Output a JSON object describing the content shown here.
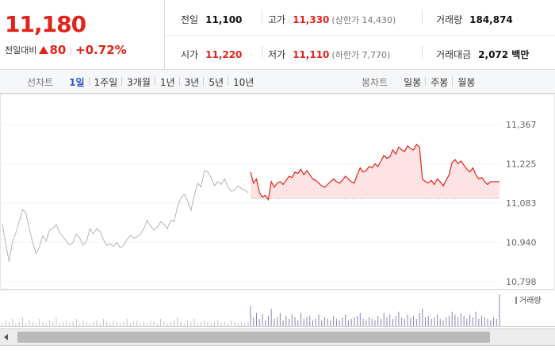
{
  "quote": {
    "price": "11,180",
    "change_label": "전일대비",
    "change_amount": "80",
    "change_rate": "+0.72%",
    "prev_close_label": "전일",
    "prev_close": "11,100",
    "open_label": "시가",
    "open": "11,220",
    "high_label": "고가",
    "high": "11,330",
    "upper_limit": "(상한가 14,430)",
    "low_label": "저가",
    "low": "11,110",
    "lower_limit": "(하한가 7,770)",
    "volume_label": "거래량",
    "volume": "184,874",
    "turnover_label": "거래대금",
    "turnover": "2,072 백만"
  },
  "line_tabs": {
    "caption": "선차트",
    "items": [
      "1일",
      "1주일",
      "3개월",
      "1년",
      "3년",
      "5년",
      "10년"
    ],
    "active": "1일"
  },
  "candle_tabs": {
    "caption": "봉차트",
    "items": [
      "일봉",
      "주봉",
      "월봉"
    ]
  },
  "chart_data": {
    "type": "line",
    "y_ticks": [
      "11,367",
      "11,225",
      "11,083",
      "10,940",
      "10,798"
    ],
    "ylim": [
      10798,
      11367
    ],
    "reference_line": 11100,
    "volume_legend": "거래량",
    "colors": {
      "previous_day": "#b5b5b5",
      "today": "#e2231a",
      "today_fill": "#fde3e3",
      "volume": "#8f7fb8",
      "volume_prev": "#c2c2c2"
    },
    "series": [
      {
        "session": "previous_day",
        "values": [
          11005,
          10935,
          10870,
          10940,
          10975,
          11015,
          11060,
          11045,
          10990,
          10940,
          10900,
          10925,
          10965,
          10945,
          10985,
          10990,
          11005,
          10975,
          10960,
          10945,
          10930,
          10940,
          10970,
          10955,
          10930,
          10945,
          10990,
          10970,
          10990,
          10980,
          10950,
          10930,
          10935,
          10925,
          10940,
          10920,
          10930,
          10950,
          10965,
          10955,
          10960,
          10970,
          10990,
          11020,
          11000,
          10985,
          10995,
          11015,
          11005,
          10990,
          11020,
          11015,
          11070,
          11100,
          11115,
          11090,
          11055,
          11110,
          11155,
          11140,
          11200,
          11195,
          11175,
          11145,
          11160,
          11150,
          11170,
          11140,
          11125,
          11130,
          11145,
          11135,
          11130,
          11120
        ]
      },
      {
        "session": "today",
        "values": [
          11195,
          11155,
          11170,
          11120,
          11105,
          11110,
          11095,
          11160,
          11140,
          11155,
          11160,
          11150,
          11165,
          11180,
          11175,
          11195,
          11190,
          11205,
          11185,
          11200,
          11185,
          11170,
          11165,
          11155,
          11145,
          11140,
          11150,
          11160,
          11170,
          11160,
          11155,
          11165,
          11180,
          11170,
          11160,
          11155,
          11185,
          11210,
          11195,
          11200,
          11215,
          11210,
          11225,
          11215,
          11235,
          11255,
          11245,
          11250,
          11275,
          11260,
          11285,
          11275,
          11270,
          11290,
          11280,
          11275,
          11295,
          11285,
          11170,
          11160,
          11155,
          11165,
          11150,
          11170,
          11160,
          11145,
          11165,
          11185,
          11230,
          11240,
          11225,
          11235,
          11220,
          11205,
          11195,
          11210,
          11185,
          11170,
          11175,
          11160,
          11150,
          11160,
          11160,
          11160,
          11160
        ]
      }
    ],
    "volume": {
      "previous_day": [
        2,
        4,
        3,
        5,
        2,
        3,
        6,
        2,
        4,
        3,
        2,
        5,
        3,
        2,
        4,
        3,
        6,
        2,
        3,
        4,
        2,
        3,
        5,
        2,
        4,
        3,
        2,
        3,
        4,
        2,
        5,
        3,
        2,
        4,
        3,
        2,
        3,
        5,
        2,
        3,
        4,
        2,
        3,
        2,
        4,
        3,
        2,
        5,
        3,
        2,
        3,
        4,
        6,
        3,
        2,
        4,
        3,
        5,
        2,
        3,
        4,
        3,
        2,
        3,
        4,
        2,
        3,
        2,
        4,
        3,
        2,
        3,
        2,
        3
      ],
      "today": [
        14,
        6,
        9,
        5,
        8,
        4,
        7,
        12,
        5,
        6,
        9,
        4,
        7,
        5,
        8,
        6,
        4,
        9,
        5,
        6,
        7,
        4,
        5,
        8,
        4,
        6,
        5,
        4,
        7,
        5,
        4,
        6,
        8,
        4,
        5,
        6,
        7,
        9,
        5,
        4,
        6,
        5,
        4,
        7,
        5,
        9,
        6,
        8,
        5,
        7,
        10,
        6,
        5,
        8,
        6,
        7,
        5,
        9,
        12,
        6,
        7,
        5,
        6,
        8,
        5,
        4,
        6,
        7,
        10,
        8,
        6,
        9,
        7,
        5,
        8,
        6,
        10,
        5,
        7,
        6,
        5,
        4,
        6,
        5,
        22
      ]
    }
  }
}
